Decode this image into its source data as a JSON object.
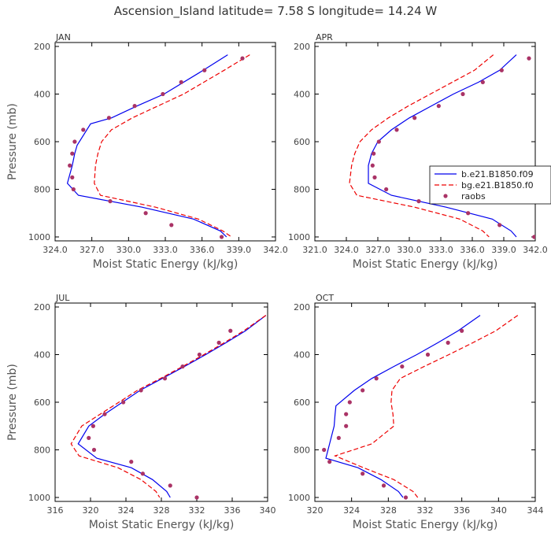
{
  "title": "Ascension_Island  latitude= 7.58 S longitude= 14.24 W",
  "colors": {
    "model": "#0000ee",
    "bg_model": "#ee0000",
    "raobs": "#aa3366",
    "axis": "#000000"
  },
  "legend": {
    "entries": [
      {
        "label": "b.e21.B1850.f09",
        "style": "solid",
        "color": "#0000ee"
      },
      {
        "label": "bg.e21.B1850.f0",
        "style": "dashed",
        "color": "#ee0000"
      },
      {
        "label": "raobs",
        "style": "marker",
        "color": "#aa3366"
      }
    ]
  },
  "chart_data": [
    {
      "type": "line",
      "panel": "JAN",
      "title": "JAN",
      "xlabel": "Moist Static Energy (kJ/kg)",
      "ylabel": "Pressure (mb)",
      "xlim": [
        324.0,
        342.0
      ],
      "ylim": [
        1000,
        200
      ],
      "y_inverted": true,
      "xticks": [
        324,
        327,
        330,
        333,
        336,
        339,
        342
      ],
      "xtick_labels": [
        "324.0",
        "327.0",
        "330.0",
        "333.0",
        "336.0",
        "339.0",
        "342.0"
      ],
      "yticks": [
        200,
        400,
        600,
        800,
        1000
      ],
      "ytick_labels": [
        "200",
        "400",
        "600",
        "800",
        "1000"
      ],
      "series": [
        {
          "name": "b.e21.B1850.f09",
          "style": "solid",
          "pressure": [
            235,
            300,
            400,
            450,
            500,
            525,
            615,
            650,
            700,
            775,
            825,
            875,
            925,
            975,
            1000
          ],
          "mse": [
            338.1,
            336.1,
            332.9,
            330.7,
            328.6,
            326.9,
            325.8,
            325.6,
            325.4,
            325.0,
            325.9,
            331.1,
            335.3,
            337.5,
            338.0
          ]
        },
        {
          "name": "bg.e21.B1850.f0",
          "style": "dashed",
          "pressure": [
            235,
            300,
            400,
            450,
            500,
            550,
            600,
            650,
            700,
            775,
            825,
            875,
            925,
            975,
            1000
          ],
          "mse": [
            339.9,
            337.8,
            334.5,
            332.4,
            330.3,
            328.6,
            327.8,
            327.5,
            327.3,
            327.2,
            327.7,
            332.2,
            335.7,
            337.7,
            338.4
          ]
        },
        {
          "name": "raobs",
          "style": "marker",
          "pressure": [
            250,
            300,
            350,
            400,
            450,
            500,
            550,
            600,
            650,
            700,
            750,
            800,
            850,
            900,
            950,
            1000
          ],
          "mse": [
            339.3,
            336.2,
            334.3,
            332.8,
            330.5,
            328.4,
            326.3,
            325.6,
            325.4,
            325.2,
            325.4,
            325.5,
            328.5,
            331.4,
            333.5,
            337.6
          ]
        }
      ]
    },
    {
      "type": "line",
      "panel": "APR",
      "title": "APR",
      "xlabel": "Moist Static Energy (kJ/kg)",
      "ylabel": "Pressure (mb)",
      "xlim": [
        321.0,
        342.0
      ],
      "ylim": [
        1000,
        200
      ],
      "y_inverted": true,
      "xticks": [
        321,
        324,
        327,
        330,
        333,
        336,
        339,
        342
      ],
      "xtick_labels": [
        "321.0",
        "324.0",
        "327.0",
        "330.0",
        "333.0",
        "336.0",
        "339.0",
        "342.0"
      ],
      "yticks": [
        200,
        400,
        600,
        800,
        1000
      ],
      "ytick_labels": [
        "200",
        "400",
        "600",
        "800",
        "1000"
      ],
      "series": [
        {
          "name": "b.e21.B1850.f09",
          "style": "solid",
          "pressure": [
            235,
            300,
            350,
            400,
            450,
            500,
            550,
            600,
            650,
            700,
            775,
            825,
            875,
            925,
            975,
            1000
          ],
          "mse": [
            340.2,
            338.6,
            336.6,
            334.2,
            332.1,
            330.0,
            328.3,
            327.0,
            326.4,
            326.1,
            326.1,
            328.3,
            333.5,
            337.9,
            339.7,
            340.2
          ]
        },
        {
          "name": "bg.e21.B1850.f0",
          "style": "dashed",
          "pressure": [
            235,
            300,
            350,
            400,
            450,
            500,
            550,
            600,
            650,
            700,
            775,
            825,
            875,
            925,
            975,
            1000
          ],
          "mse": [
            338.0,
            336.2,
            334.1,
            332.0,
            329.9,
            328.0,
            326.4,
            325.3,
            324.8,
            324.5,
            324.3,
            325.0,
            330.5,
            334.8,
            337.0,
            337.6
          ]
        },
        {
          "name": "raobs",
          "style": "marker",
          "pressure": [
            250,
            300,
            350,
            400,
            450,
            500,
            550,
            600,
            650,
            700,
            750,
            800,
            850,
            900,
            950,
            1000
          ],
          "mse": [
            341.4,
            338.8,
            337.0,
            335.1,
            332.8,
            330.5,
            328.8,
            327.1,
            326.6,
            326.5,
            326.7,
            327.8,
            330.9,
            335.6,
            338.6,
            341.9
          ]
        }
      ]
    },
    {
      "type": "line",
      "panel": "JUL",
      "title": "JUL",
      "xlabel": "Moist Static Energy (kJ/kg)",
      "ylabel": "Pressure (mb)",
      "xlim": [
        316,
        340
      ],
      "ylim": [
        1000,
        200
      ],
      "y_inverted": true,
      "xticks": [
        316,
        320,
        324,
        328,
        332,
        336,
        340
      ],
      "xtick_labels": [
        "316",
        "320",
        "324",
        "328",
        "332",
        "336",
        "340"
      ],
      "yticks": [
        200,
        400,
        600,
        800,
        1000
      ],
      "ytick_labels": [
        "200",
        "400",
        "600",
        "800",
        "1000"
      ],
      "series": [
        {
          "name": "b.e21.B1850.f09",
          "style": "solid",
          "pressure": [
            235,
            300,
            350,
            400,
            450,
            500,
            550,
            600,
            650,
            700,
            775,
            835,
            875,
            925,
            975,
            1000
          ],
          "mse": [
            339.8,
            337.5,
            335.3,
            333.0,
            330.6,
            328.1,
            325.6,
            323.6,
            321.6,
            319.8,
            318.6,
            320.7,
            324.6,
            327.0,
            328.6,
            329.0
          ]
        },
        {
          "name": "bg.e21.B1850.f0",
          "style": "dashed",
          "pressure": [
            235,
            300,
            350,
            400,
            450,
            500,
            550,
            600,
            650,
            700,
            775,
            825,
            875,
            925,
            975,
            1000
          ],
          "mse": [
            339.8,
            337.3,
            335.1,
            332.8,
            330.4,
            327.9,
            325.3,
            323.2,
            321.1,
            319.0,
            317.8,
            318.7,
            323.1,
            325.7,
            327.4,
            327.8
          ]
        },
        {
          "name": "raobs",
          "style": "marker",
          "pressure": [
            300,
            350,
            400,
            450,
            500,
            550,
            600,
            650,
            700,
            750,
            800,
            850,
            900,
            950,
            1000
          ],
          "mse": [
            335.8,
            334.5,
            332.3,
            330.4,
            328.4,
            325.7,
            323.7,
            321.6,
            320.3,
            319.8,
            320.4,
            324.6,
            325.9,
            329.0,
            332.0
          ]
        }
      ]
    },
    {
      "type": "line",
      "panel": "OCT",
      "title": "OCT",
      "xlabel": "Moist Static Energy (kJ/kg)",
      "ylabel": "Pressure (mb)",
      "xlim": [
        320,
        344
      ],
      "ylim": [
        1000,
        200
      ],
      "y_inverted": true,
      "xticks": [
        320,
        324,
        328,
        332,
        336,
        340,
        344
      ],
      "xtick_labels": [
        "320",
        "324",
        "328",
        "332",
        "336",
        "340",
        "344"
      ],
      "yticks": [
        200,
        400,
        600,
        800,
        1000
      ],
      "ytick_labels": [
        "200",
        "400",
        "600",
        "800",
        "1000"
      ],
      "series": [
        {
          "name": "b.e21.B1850.f09",
          "style": "solid",
          "pressure": [
            235,
            300,
            350,
            400,
            450,
            500,
            550,
            615,
            650,
            700,
            775,
            835,
            875,
            925,
            975,
            1000
          ],
          "mse": [
            338.0,
            335.6,
            333.4,
            331.1,
            328.6,
            326.2,
            324.3,
            322.3,
            322.2,
            322.1,
            321.6,
            321.2,
            324.7,
            327.2,
            329.1,
            329.6
          ]
        },
        {
          "name": "bg.e21.B1850.f0",
          "style": "dashed",
          "pressure": [
            235,
            300,
            350,
            400,
            450,
            500,
            550,
            600,
            650,
            700,
            775,
            825,
            875,
            925,
            975,
            1000
          ],
          "mse": [
            342.1,
            339.7,
            337.2,
            334.6,
            331.9,
            329.3,
            328.4,
            328.3,
            328.5,
            328.6,
            326.2,
            322.2,
            325.3,
            328.6,
            330.7,
            331.2
          ]
        },
        {
          "name": "raobs",
          "style": "marker",
          "pressure": [
            300,
            350,
            400,
            450,
            500,
            550,
            600,
            650,
            700,
            750,
            800,
            850,
            900,
            950,
            1000
          ],
          "mse": [
            336.0,
            334.5,
            332.3,
            329.5,
            326.7,
            325.2,
            323.8,
            323.4,
            323.4,
            322.6,
            321.0,
            321.6,
            325.2,
            327.5,
            329.9
          ]
        }
      ]
    }
  ]
}
